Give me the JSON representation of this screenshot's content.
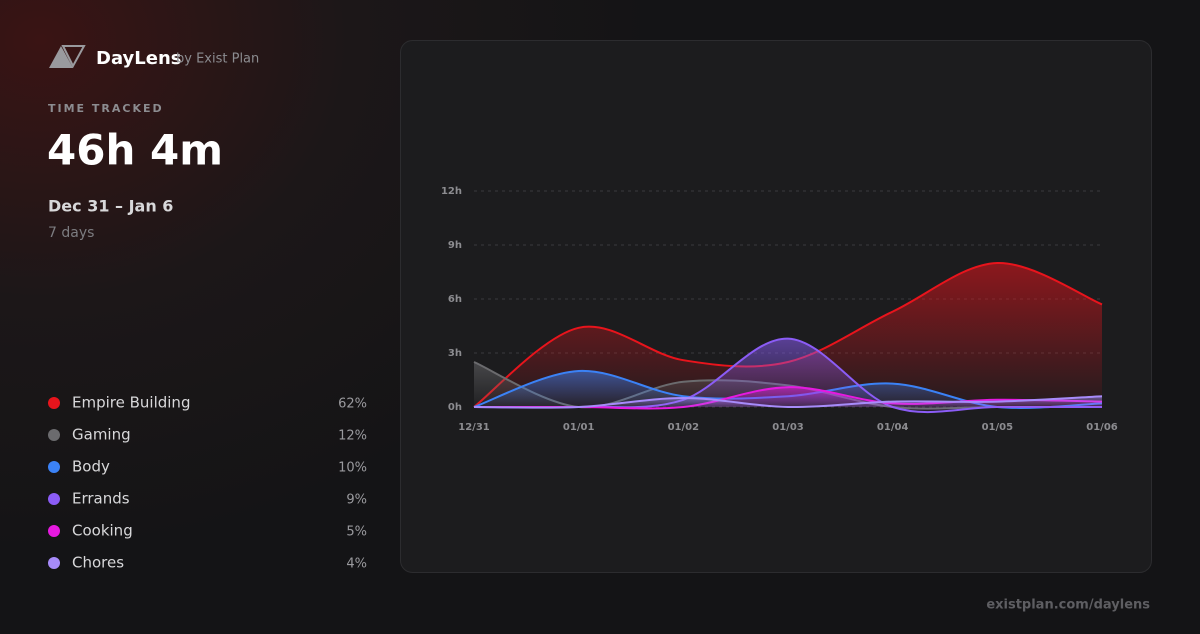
{
  "header": {
    "brand": "DayLens",
    "byline": "by Exist Plan",
    "kicker": "TIME TRACKED",
    "total": "46h 4m",
    "range": "Dec 31 – Jan 6",
    "days": "7 days"
  },
  "footer": {
    "url": "existplan.com/daylens"
  },
  "chart_data": {
    "type": "area",
    "categories": [
      "12/31",
      "01/01",
      "01/02",
      "01/03",
      "01/04",
      "01/05",
      "01/06"
    ],
    "ylim": [
      0,
      12
    ],
    "yticks": [
      {
        "value": 0,
        "label": "0h"
      },
      {
        "value": 3,
        "label": "3h"
      },
      {
        "value": 6,
        "label": "6h"
      },
      {
        "value": 9,
        "label": "9h"
      },
      {
        "value": 12,
        "label": "12h"
      }
    ],
    "grid": true,
    "series": [
      {
        "name": "Empire Building",
        "color": "#e8141c",
        "share": "62%",
        "values": [
          0,
          4.4,
          2.6,
          2.5,
          5.3,
          8.0,
          5.7
        ]
      },
      {
        "name": "Gaming",
        "color": "#6b6b6e",
        "share": "12%",
        "values": [
          2.5,
          0,
          1.4,
          1.2,
          0,
          0,
          0
        ]
      },
      {
        "name": "Body",
        "color": "#3b82f6",
        "share": "10%",
        "values": [
          0,
          2.0,
          0.6,
          0.6,
          1.3,
          0,
          0.2
        ]
      },
      {
        "name": "Errands",
        "color": "#8b5cf6",
        "share": "9%",
        "values": [
          0,
          0,
          0.4,
          3.8,
          0,
          0,
          0
        ]
      },
      {
        "name": "Cooking",
        "color": "#e619e0",
        "share": "5%",
        "values": [
          0,
          0,
          0,
          1.1,
          0.2,
          0.4,
          0.3
        ]
      },
      {
        "name": "Chores",
        "color": "#a78bfa",
        "share": "4%",
        "values": [
          0,
          0,
          0.5,
          0,
          0.3,
          0.3,
          0.6
        ]
      }
    ]
  }
}
